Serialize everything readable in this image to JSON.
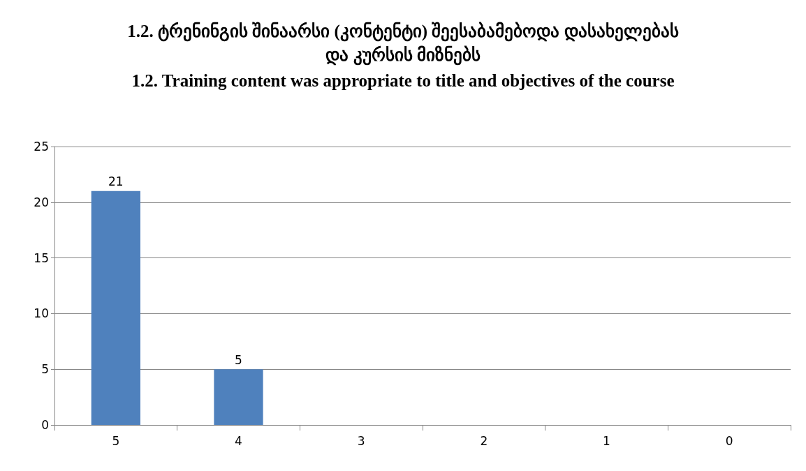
{
  "chart_data": {
    "type": "bar",
    "title": "1.2. ტრენინგის შინაარსი (კონტენტი) შეესაბამებოდა დასახელებას\nდა კურსის მიზნებს",
    "subtitle": "1.2. Training content was appropriate to title and objectives of the course",
    "categories": [
      "5",
      "4",
      "3",
      "2",
      "1",
      "0"
    ],
    "values": [
      21,
      5,
      0,
      0,
      0,
      0
    ],
    "value_labels": [
      "21",
      "5",
      null,
      null,
      null,
      null
    ],
    "color": "#4f81bd",
    "ylim": [
      0,
      25
    ],
    "yticks": [
      0,
      5,
      10,
      15,
      20,
      25
    ],
    "grid": "y"
  }
}
